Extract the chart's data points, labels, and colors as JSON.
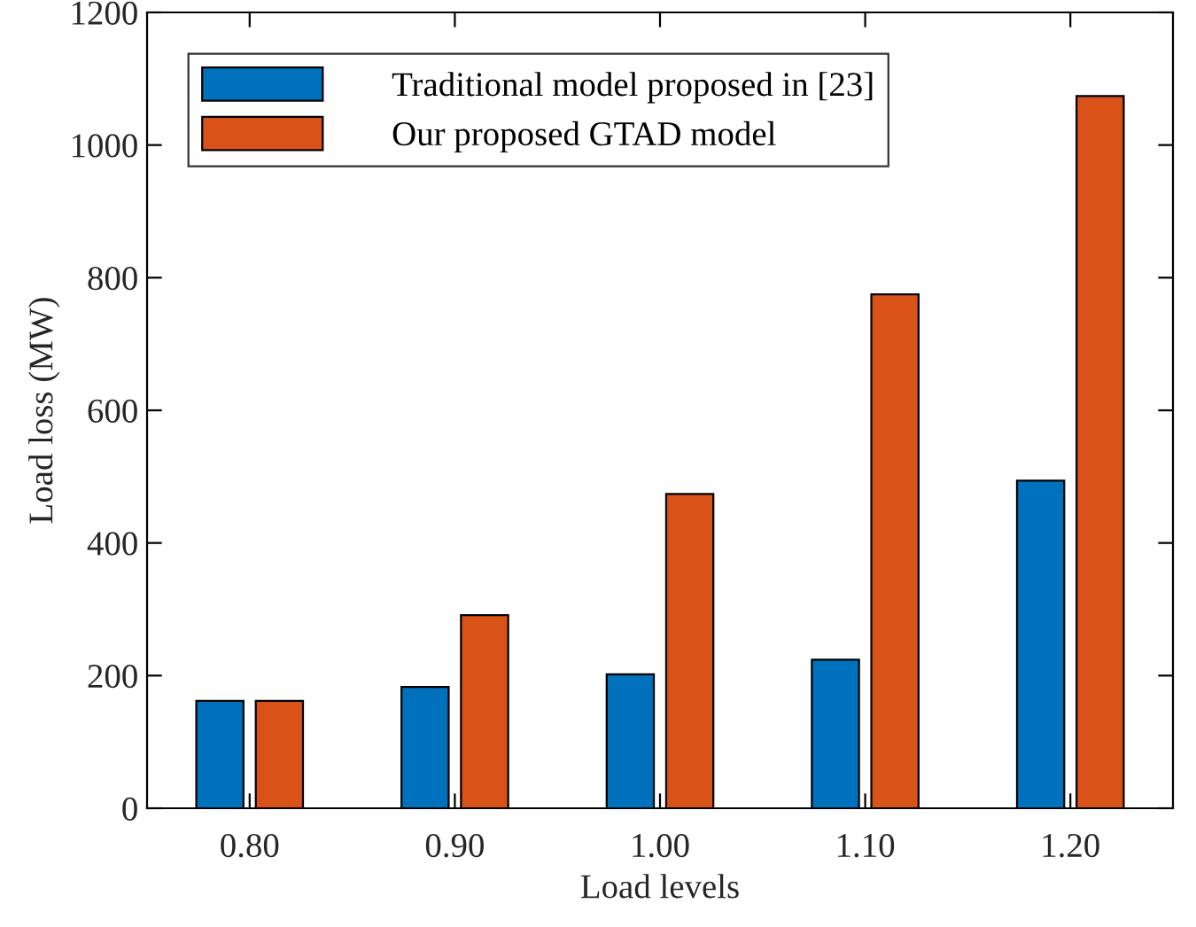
{
  "chart_data": {
    "type": "bar",
    "xlabel": "Load levels",
    "ylabel": "Load loss (MW)",
    "categories": [
      "0.80",
      "0.90",
      "1.00",
      "1.10",
      "1.20"
    ],
    "series": [
      {
        "name": "Traditional model proposed in [23]",
        "color": "#0072bd",
        "values": [
          162,
          183,
          202,
          224,
          494
        ]
      },
      {
        "name": "Our proposed GTAD model",
        "color": "#d95319",
        "values": [
          162,
          291,
          474,
          775,
          1074
        ]
      }
    ],
    "ylim": [
      0,
      1200
    ],
    "yticks": [
      0,
      200,
      400,
      600,
      800,
      1000,
      1200
    ],
    "grid": false,
    "legend": "top left"
  }
}
